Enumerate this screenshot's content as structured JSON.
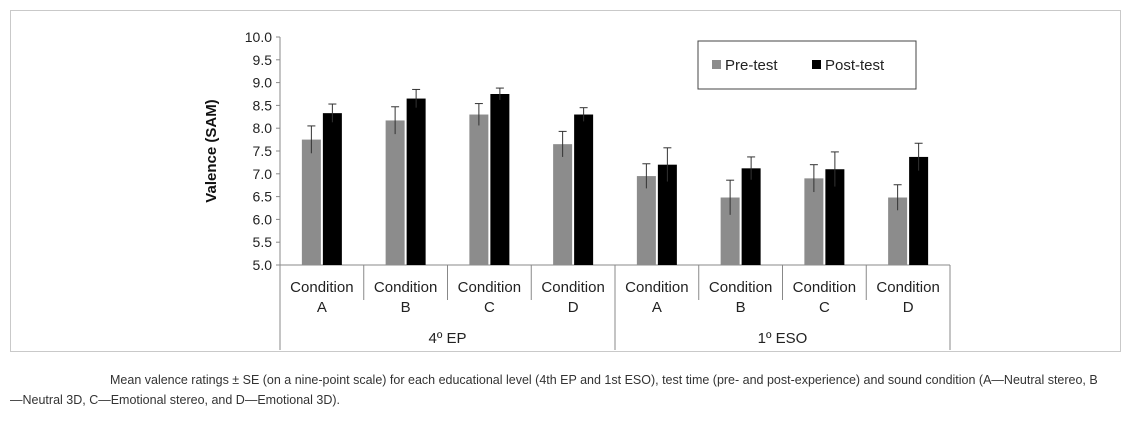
{
  "chart_data": {
    "type": "bar",
    "ylabel": "Valence (SAM)",
    "ylim": [
      5.0,
      10.0
    ],
    "yticks": [
      "5.0",
      "5.5",
      "6.0",
      "6.5",
      "7.0",
      "7.5",
      "8.0",
      "8.5",
      "9.0",
      "9.5",
      "10.0"
    ],
    "groups": [
      {
        "label": "4º EP",
        "categories": [
          {
            "line1": "Condition",
            "line2": "A"
          },
          {
            "line1": "Condition",
            "line2": "B"
          },
          {
            "line1": "Condition",
            "line2": "C"
          },
          {
            "line1": "Condition",
            "line2": "D"
          }
        ]
      },
      {
        "label": "1º ESO",
        "categories": [
          {
            "line1": "Condition",
            "line2": "A"
          },
          {
            "line1": "Condition",
            "line2": "B"
          },
          {
            "line1": "Condition",
            "line2": "C"
          },
          {
            "line1": "Condition",
            "line2": "D"
          }
        ]
      }
    ],
    "series": [
      {
        "name": "Pre-test",
        "color": "#8c8c8c",
        "values": [
          7.75,
          8.17,
          8.3,
          7.65,
          6.95,
          6.48,
          6.9,
          6.48
        ],
        "errors": [
          0.3,
          0.3,
          0.24,
          0.28,
          0.27,
          0.38,
          0.3,
          0.28
        ]
      },
      {
        "name": "Post-test",
        "color": "#000000",
        "values": [
          8.33,
          8.65,
          8.75,
          8.3,
          7.2,
          7.12,
          7.1,
          7.37
        ],
        "errors": [
          0.2,
          0.2,
          0.13,
          0.15,
          0.37,
          0.25,
          0.38,
          0.3
        ]
      }
    ],
    "legend": "top-right",
    "grid": false
  },
  "caption": "Mean valence ratings ± SE (on a nine-point scale) for each educational level (4th EP and 1st ESO), test time (pre- and post-experience) and sound condition (A—Neutral stereo, B—Neutral 3D, C—Emotional stereo, and D—Emotional 3D)."
}
